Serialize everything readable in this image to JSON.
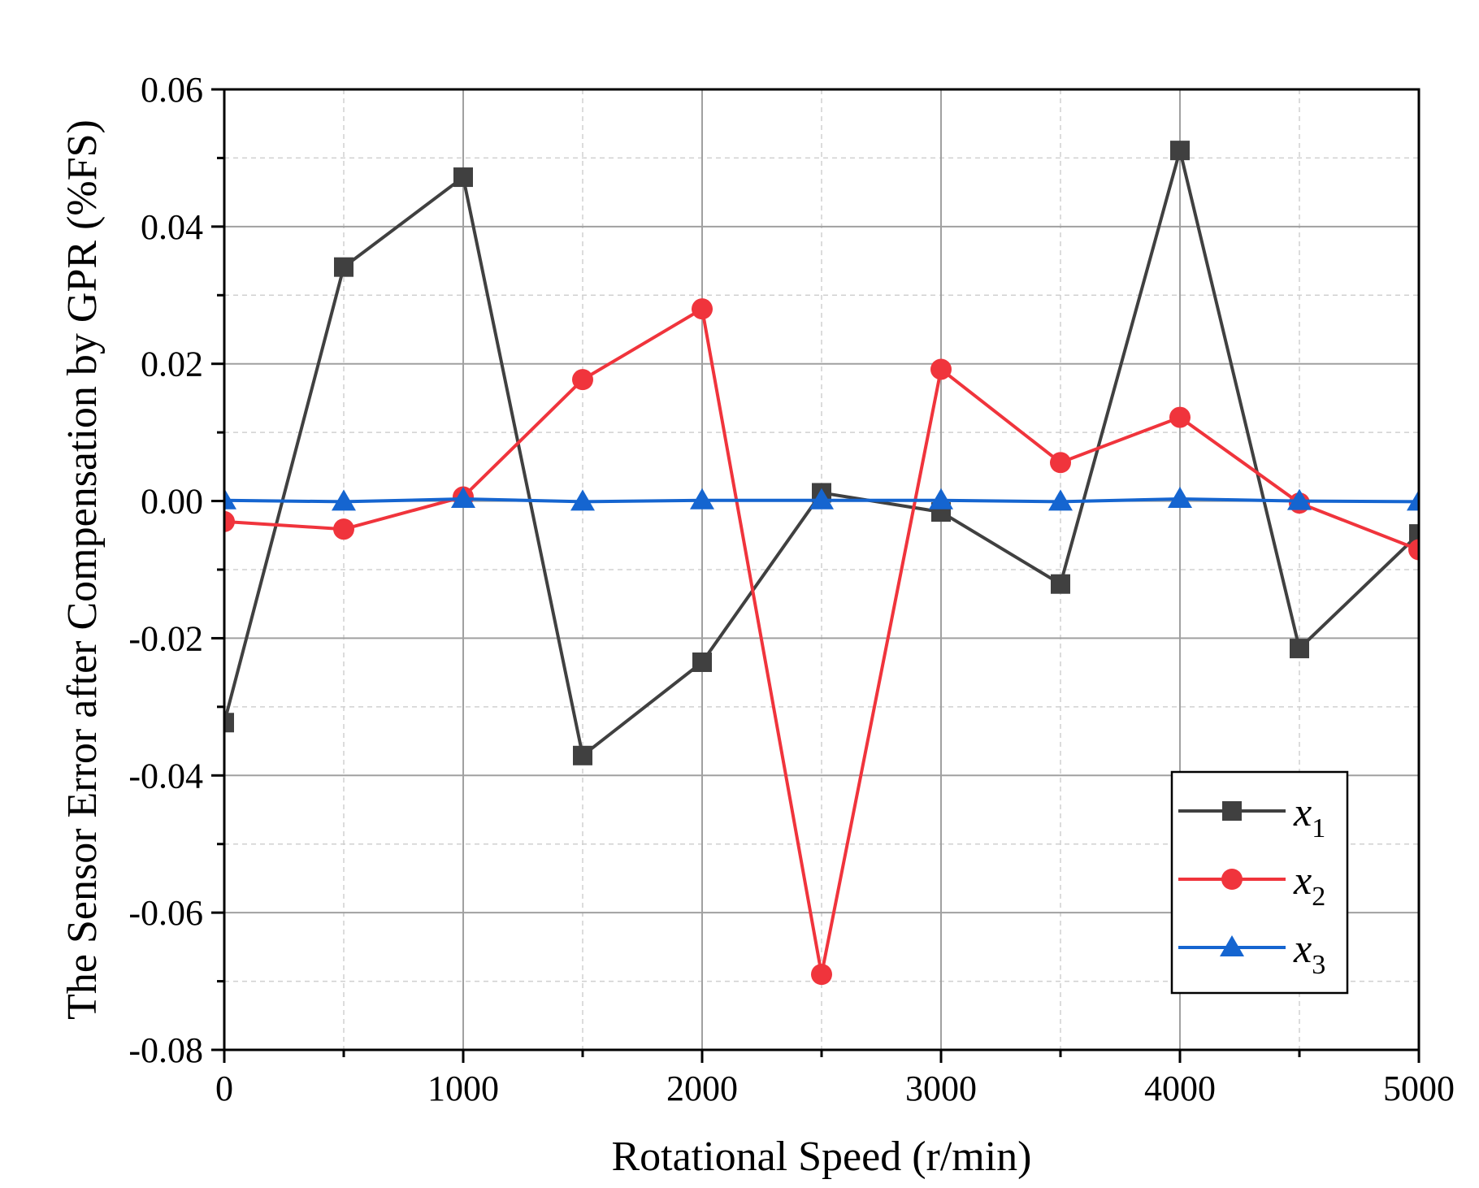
{
  "chart_data": {
    "type": "line",
    "title": "",
    "xlabel": "Rotational Speed (r/min)",
    "ylabel": "The Sensor Error after  Compensation by GPR (%FS)",
    "xlim": [
      0,
      5000
    ],
    "ylim": [
      -0.08,
      0.06
    ],
    "x_ticks": [
      0,
      1000,
      2000,
      3000,
      4000,
      5000
    ],
    "x_tick_labels": [
      "0",
      "1000",
      "2000",
      "3000",
      "4000",
      "5000"
    ],
    "y_ticks": [
      -0.08,
      -0.06,
      -0.04,
      -0.02,
      0.0,
      0.02,
      0.04,
      0.06
    ],
    "y_tick_labels": [
      "-0.08",
      "-0.06",
      "-0.04",
      "-0.02",
      "0.00",
      "0.02",
      "0.04",
      "0.06"
    ],
    "grid": true,
    "legend_position": "bottom-right",
    "x": [
      0,
      500,
      1000,
      1500,
      2000,
      2500,
      3000,
      3500,
      4000,
      4500,
      5000
    ],
    "series": [
      {
        "name": "x1",
        "label_base": "x",
        "label_sub": "1",
        "color": "#404040",
        "marker": "square",
        "values": [
          -0.0323,
          0.0341,
          0.0472,
          -0.0371,
          -0.0235,
          0.0012,
          -0.0016,
          -0.0121,
          0.0511,
          -0.0215,
          -0.0048
        ]
      },
      {
        "name": "x2",
        "label_base": "x",
        "label_sub": "2",
        "color": "#f0343c",
        "marker": "circle",
        "values": [
          -0.003,
          -0.0041,
          0.0006,
          0.0177,
          0.028,
          -0.069,
          0.0192,
          0.0056,
          0.0122,
          -0.0003,
          -0.0071
        ]
      },
      {
        "name": "x3",
        "label_base": "x",
        "label_sub": "3",
        "color": "#1565d0",
        "marker": "triangle",
        "values": [
          0.0001,
          -0.0001,
          0.0003,
          -0.0001,
          0.0001,
          0.0001,
          0.0001,
          -0.0001,
          0.0003,
          0.0,
          -0.0001
        ]
      }
    ]
  }
}
